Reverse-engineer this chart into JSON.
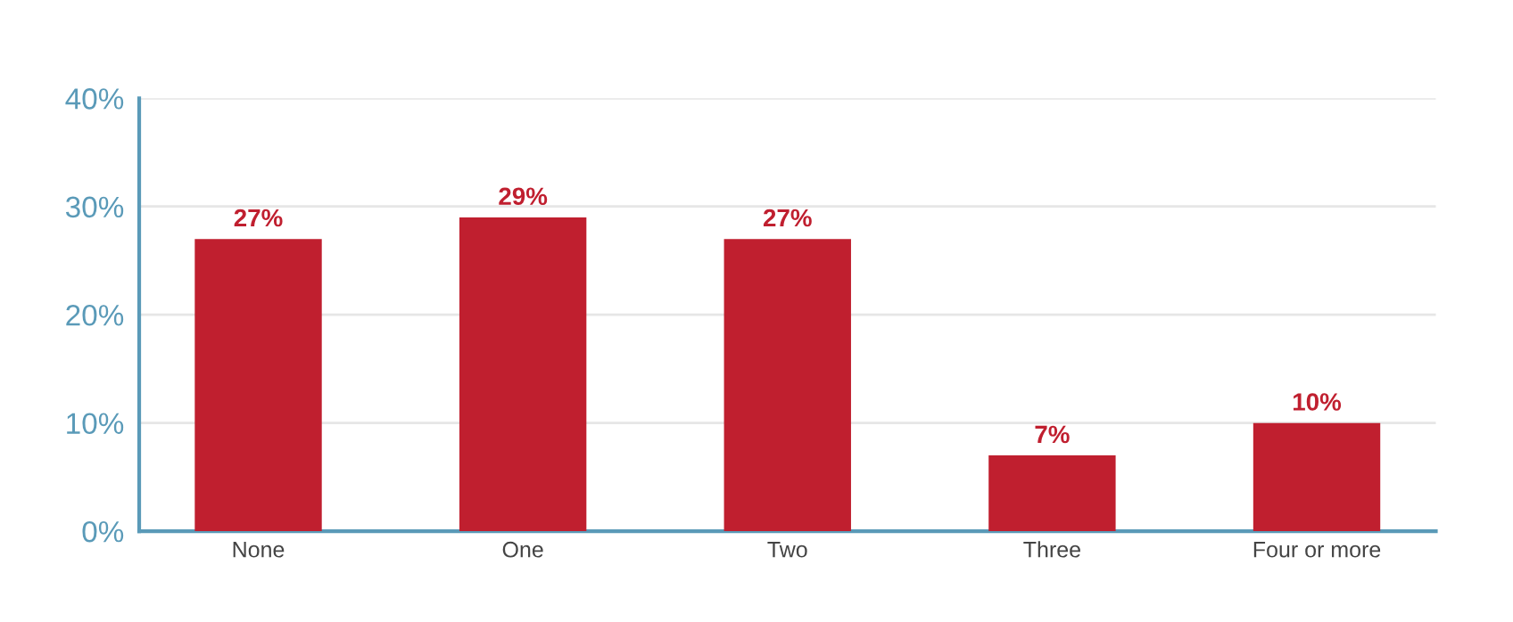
{
  "chart_data": {
    "type": "bar",
    "categories": [
      "None",
      "One",
      "Two",
      "Three",
      "Four or more"
    ],
    "values": [
      27,
      29,
      27,
      7,
      10
    ],
    "color": "#c01f2f",
    "value_labels": [
      "27%",
      "29%",
      "27%",
      "7%",
      "10%"
    ],
    "ylim": [
      0,
      40
    ],
    "yticks": [
      {
        "value": 0,
        "label": "0%"
      },
      {
        "value": 10,
        "label": "10%"
      },
      {
        "value": 20,
        "label": "20%"
      },
      {
        "value": 30,
        "label": "30%"
      },
      {
        "value": 40,
        "label": "40%"
      }
    ],
    "grid": "y",
    "legend": false
  }
}
